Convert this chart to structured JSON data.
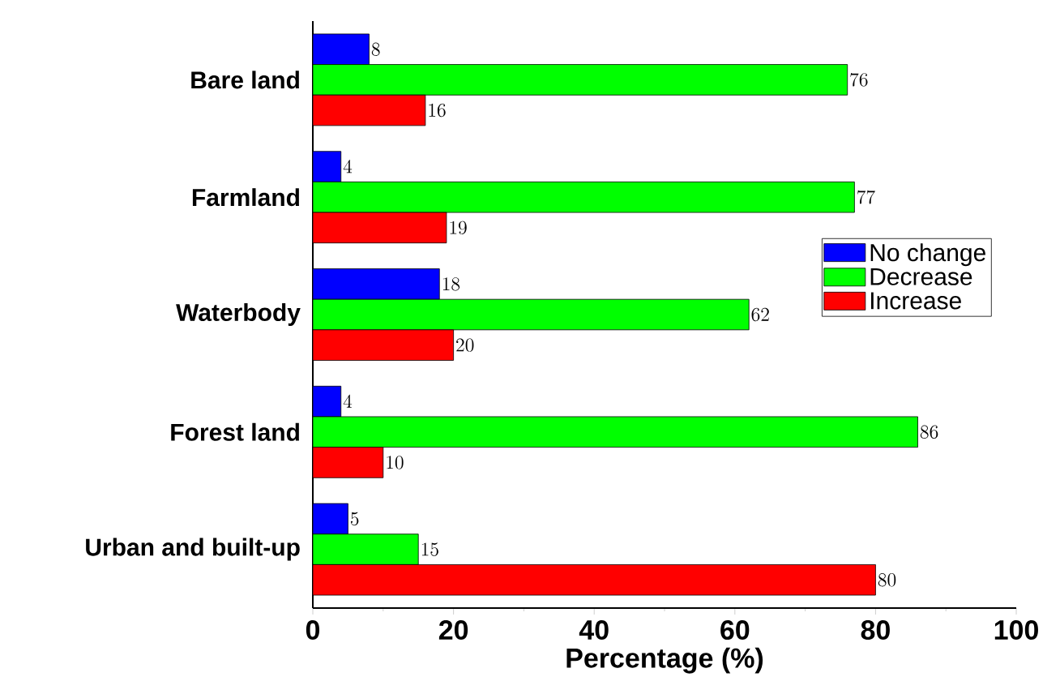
{
  "chart_data": {
    "type": "bar",
    "orientation": "horizontal",
    "xlabel": "Percentage (%)",
    "categories": [
      "Bare land",
      "Farmland",
      "Waterbody",
      "Forest land",
      "Urban and built-up"
    ],
    "series": [
      {
        "name": "No change",
        "color": "#0000ff",
        "values": [
          8,
          4,
          18,
          4,
          5
        ]
      },
      {
        "name": "Decrease",
        "color": "#00ff00",
        "values": [
          76,
          77,
          62,
          86,
          15
        ]
      },
      {
        "name": "Increase",
        "color": "#ff0000",
        "values": [
          16,
          19,
          20,
          10,
          80
        ]
      }
    ],
    "xlim": [
      0,
      100
    ],
    "xticks": [
      0,
      20,
      40,
      60,
      80,
      100
    ],
    "data_labels": true,
    "legend": "right"
  }
}
